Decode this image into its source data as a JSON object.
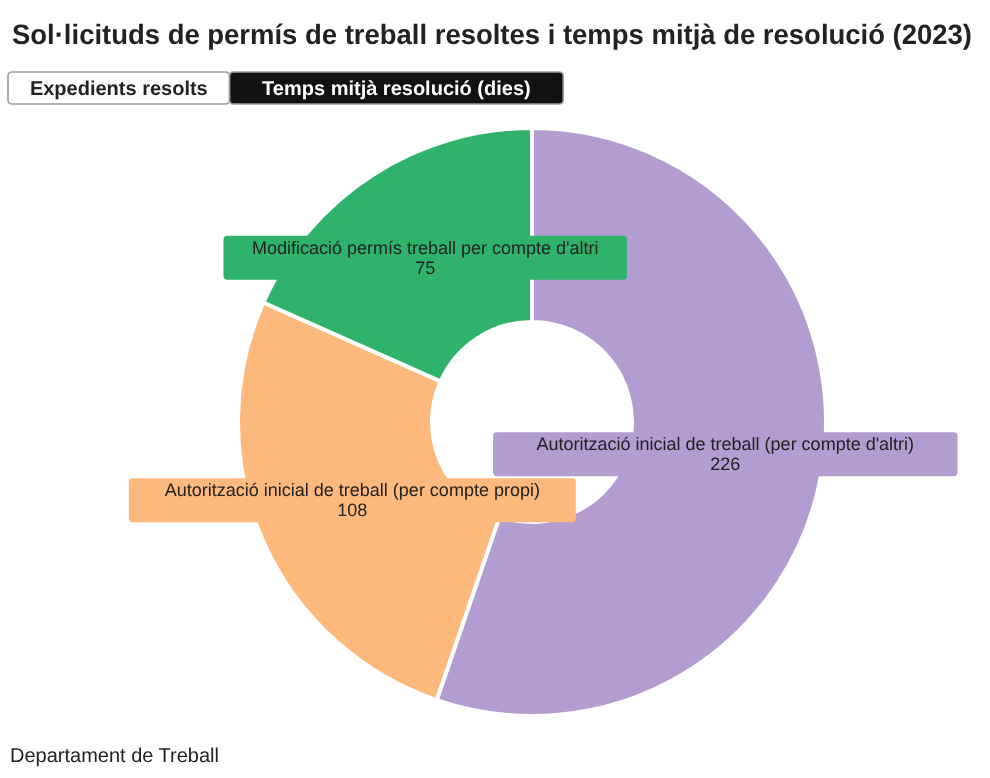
{
  "chart_data": {
    "type": "donut",
    "title": "Sol·licituds de permís de treball resoltes i temps mitjà de resolució (2023)",
    "categories": [
      "Autorització inicial de treball (per compte d'altri)",
      "Autorització inicial de treball (per compte propi)",
      "Modificació permís treball per compte d'altri"
    ],
    "values": [
      226,
      108,
      75
    ],
    "colors": [
      "#b39ccf",
      "#fdb87c",
      "#2fb36b"
    ],
    "data_labels": true,
    "annotations": [
      "Expedients resolts",
      "Temps mitjà resolució (dies)",
      "Departament de Treball"
    ]
  }
}
